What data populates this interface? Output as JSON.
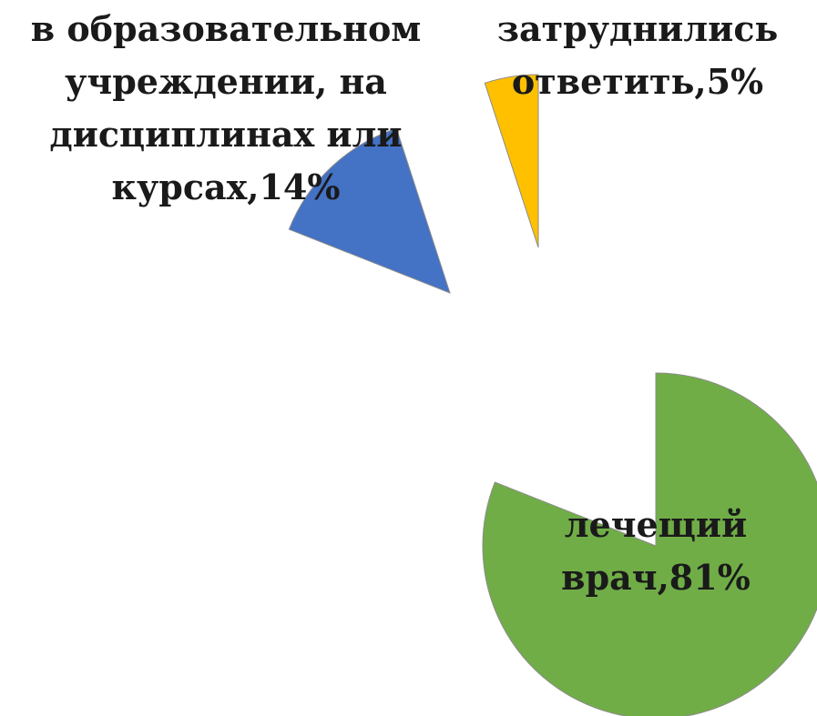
{
  "chart_data": {
    "type": "pie",
    "exploded": true,
    "slices": [
      {
        "category": "лечещий врач",
        "value": 81,
        "label_lines": [
          "лечещий",
          "врач,81%"
        ],
        "color": "#70AD47"
      },
      {
        "category": "в образовательном учреждении, на дисциплинах или курсах",
        "value": 14,
        "label_lines": [
          "в образовательном",
          "учреждении, на",
          "дисциплинах или",
          "курсах,14%"
        ],
        "color": "#4472C4"
      },
      {
        "category": "затруднились ответить",
        "value": 5,
        "label_lines": [
          "затруднились",
          "ответить,5%"
        ],
        "color": "#FFC000"
      }
    ]
  }
}
